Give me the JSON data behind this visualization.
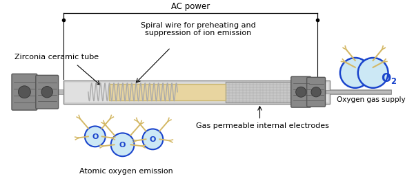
{
  "background_color": "#ffffff",
  "labels": {
    "ac_power": "AC power",
    "zirconia": "Zirconia ceramic tube",
    "spiral": "Spiral wire for preheating and\nsuppression of ion emission",
    "gas_perm": "Gas permeable internal electrodes",
    "atomic_o": "Atomic oxygen emission",
    "o2_supply": "Oxygen gas supply"
  },
  "colors": {
    "tube_gray": "#888888",
    "tube_light": "#cccccc",
    "tube_dark": "#555555",
    "ceramic_cream": "#e8d5a0",
    "ceramic_dark": "#c8b570",
    "o_circle_fill": "#cce8f5",
    "o2_blue": "#1a44cc",
    "tentacle_color": "#d4b865",
    "spring_color": "#aaaaaa",
    "mesh_color": "#bbbbbb",
    "connector_dark": "#555555",
    "connector_mid": "#888888",
    "connector_light": "#aaaaaa"
  }
}
